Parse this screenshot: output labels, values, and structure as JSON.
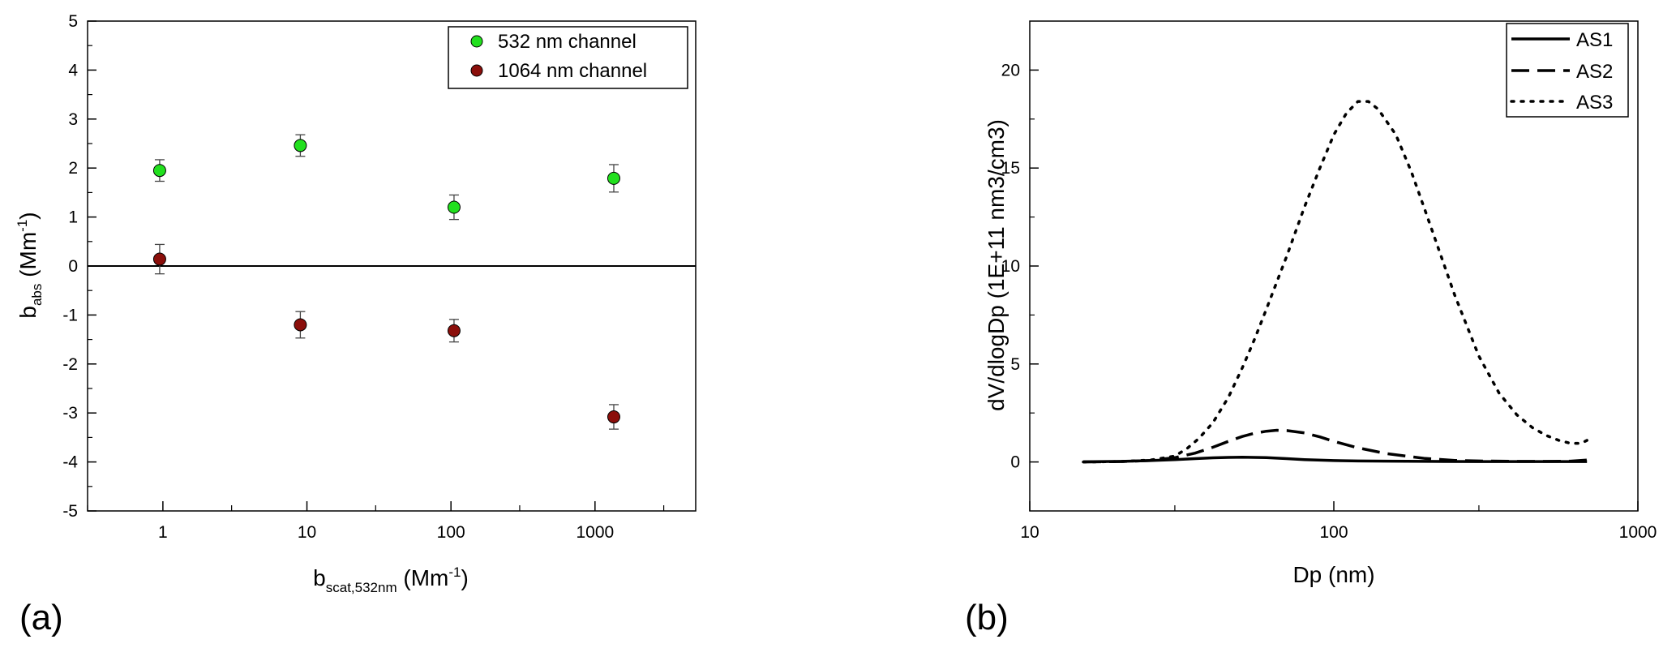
{
  "chart_data": [
    {
      "type": "scatter",
      "panel_label": "(a)",
      "x_scale": "log",
      "xlim": [
        0.3,
        5000
      ],
      "ylim": [
        -5,
        5
      ],
      "xticks": [
        1,
        10,
        100,
        1000
      ],
      "xtick_labels": [
        "1",
        "10",
        "100",
        "1000"
      ],
      "yticks": [
        -5,
        -4,
        -3,
        -2,
        -1,
        0,
        1,
        2,
        3,
        4,
        5
      ],
      "ytick_labels": [
        "-5",
        "-4",
        "-3",
        "-2",
        "-1",
        "0",
        "1",
        "2",
        "3",
        "4",
        "5"
      ],
      "xlabel_main": "b",
      "xlabel_sub": "scat,532nm",
      "xlabel_unit": "Mm",
      "xlabel_unit_sup": "-1",
      "ylabel_main": "b",
      "ylabel_sub": "abs",
      "ylabel_unit": "Mm",
      "ylabel_unit_sup": "-1",
      "reference_line_y": 0,
      "legend_position": "top-right",
      "series": [
        {
          "name": "532 nm channel",
          "color": "#22e01e",
          "points": [
            {
              "x": 0.95,
              "y": 1.95,
              "err": 0.22
            },
            {
              "x": 9.0,
              "y": 2.46,
              "err": 0.22
            },
            {
              "x": 105,
              "y": 1.2,
              "err": 0.25
            },
            {
              "x": 1350,
              "y": 1.79,
              "err": 0.28
            }
          ]
        },
        {
          "name": "1064 nm channel",
          "color": "#8b0f0b",
          "points": [
            {
              "x": 0.95,
              "y": 0.14,
              "err": 0.3
            },
            {
              "x": 9.0,
              "y": -1.2,
              "err": 0.27
            },
            {
              "x": 105,
              "y": -1.32,
              "err": 0.23
            },
            {
              "x": 1350,
              "y": -3.08,
              "err": 0.25
            }
          ]
        }
      ]
    },
    {
      "type": "line",
      "panel_label": "(b)",
      "x_scale": "log",
      "xlim": [
        10,
        1000
      ],
      "ylim": [
        -2.5,
        22.5
      ],
      "xticks": [
        10,
        100,
        1000
      ],
      "xtick_labels": [
        "10",
        "100",
        "1000"
      ],
      "yticks": [
        0,
        5,
        10,
        15,
        20
      ],
      "ytick_labels": [
        "0",
        "5",
        "10",
        "15",
        "20"
      ],
      "xlabel": "Dp (nm)",
      "ylabel": "dV/dlogDp (1E+11 nm3/cm3)",
      "legend_position": "top-right",
      "series": [
        {
          "name": "AS1",
          "dash": "solid",
          "x": [
            15,
            20,
            25,
            30,
            35,
            40,
            45,
            50,
            60,
            70,
            80,
            100,
            120,
            150,
            200,
            300,
            400,
            500,
            600,
            680
          ],
          "y": [
            0.01,
            0.03,
            0.07,
            0.12,
            0.17,
            0.21,
            0.23,
            0.24,
            0.22,
            0.17,
            0.12,
            0.07,
            0.05,
            0.04,
            0.03,
            0.02,
            0.02,
            0.02,
            0.02,
            0.02
          ]
        },
        {
          "name": "AS2",
          "dash": "dashed",
          "x": [
            15,
            20,
            25,
            30,
            35,
            40,
            45,
            50,
            55,
            60,
            65,
            70,
            80,
            90,
            100,
            120,
            150,
            200,
            250,
            300,
            400,
            500,
            600,
            680
          ],
          "y": [
            0.0,
            0.02,
            0.08,
            0.22,
            0.45,
            0.75,
            1.05,
            1.3,
            1.47,
            1.57,
            1.62,
            1.6,
            1.48,
            1.28,
            1.05,
            0.72,
            0.42,
            0.18,
            0.08,
            0.05,
            0.03,
            0.03,
            0.04,
            0.1
          ]
        },
        {
          "name": "AS3",
          "dash": "dotted",
          "x": [
            15,
            20,
            25,
            30,
            33,
            36,
            40,
            45,
            50,
            55,
            60,
            70,
            80,
            90,
            100,
            110,
            120,
            130,
            140,
            160,
            180,
            200,
            250,
            300,
            350,
            400,
            450,
            500,
            550,
            600,
            650,
            680
          ],
          "y": [
            0.0,
            0.02,
            0.1,
            0.3,
            0.7,
            1.2,
            2.0,
            3.3,
            4.8,
            6.3,
            7.8,
            10.5,
            13.0,
            15.0,
            16.7,
            17.8,
            18.4,
            18.4,
            18.0,
            16.7,
            14.8,
            12.8,
            8.5,
            5.4,
            3.5,
            2.4,
            1.75,
            1.35,
            1.1,
            0.95,
            0.95,
            1.1
          ]
        }
      ]
    }
  ]
}
